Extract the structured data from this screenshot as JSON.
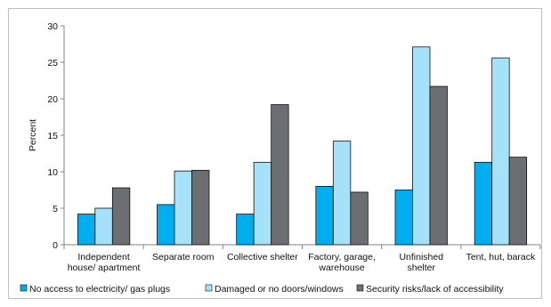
{
  "chart_data": {
    "type": "bar",
    "title": "",
    "xlabel": "",
    "ylabel": "Percent",
    "ylim": [
      0,
      30
    ],
    "yticks": [
      "0",
      "5",
      "10",
      "15",
      "20",
      "25",
      "30"
    ],
    "grid": false,
    "legend_position": "bottom",
    "categories": [
      [
        "Independent",
        "house/ apartment"
      ],
      [
        "Separate room"
      ],
      [
        "Collective shelter"
      ],
      [
        "Factory, garage,",
        "warehouse"
      ],
      [
        "Unfinished",
        "shelter"
      ],
      [
        "Tent, hut, barack"
      ]
    ],
    "series": [
      {
        "name": "No access to electricity/ gas plugs",
        "color": "#00aeef",
        "values": [
          4.2,
          5.5,
          4.2,
          8.0,
          7.5,
          11.3
        ]
      },
      {
        "name": "Damaged or no doors/windows",
        "color": "#a6e1fa",
        "values": [
          5.0,
          10.1,
          11.3,
          14.2,
          27.1,
          25.6
        ]
      },
      {
        "name": "Security risks/lack of accessibility",
        "color": "#6d6e71",
        "values": [
          7.8,
          10.2,
          19.2,
          7.2,
          21.7,
          12.0
        ]
      }
    ]
  }
}
